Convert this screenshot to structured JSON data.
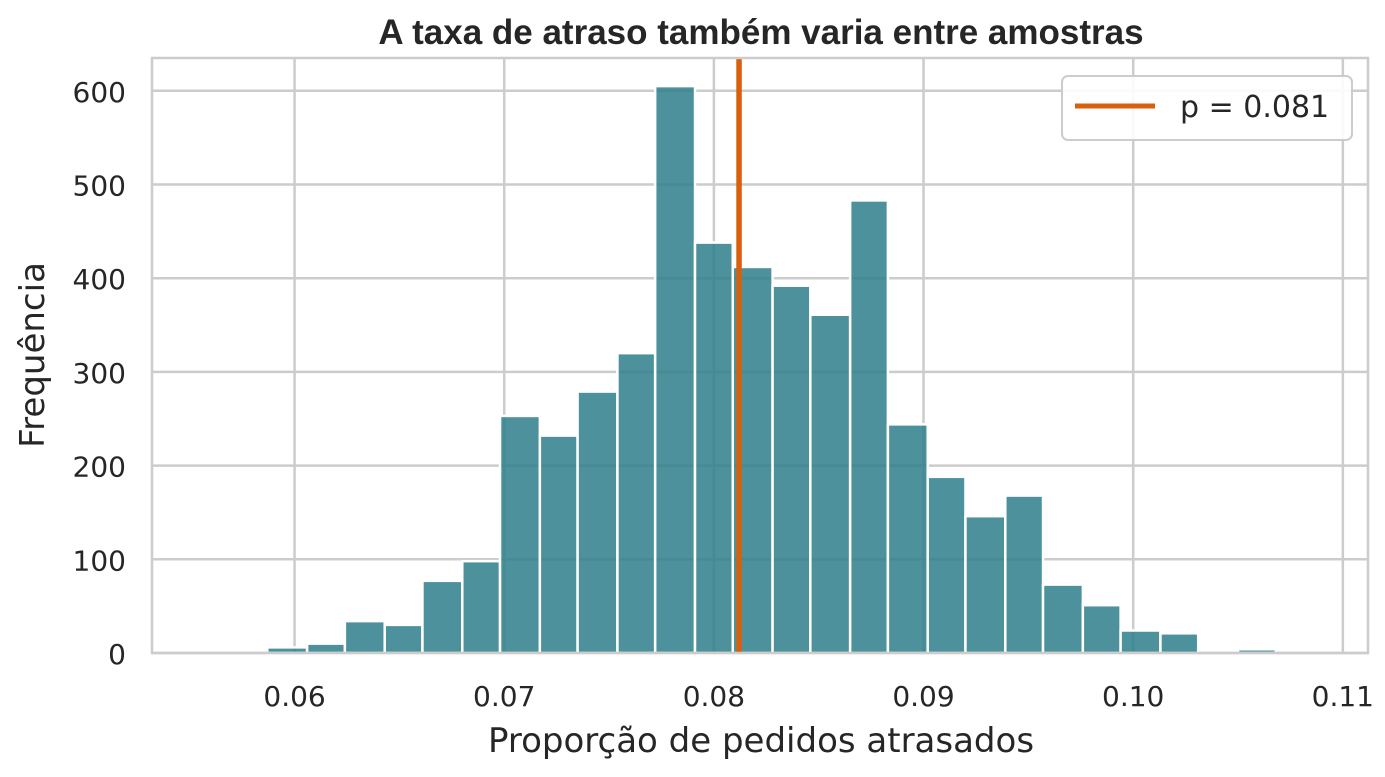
{
  "chart_data": {
    "type": "bar",
    "subtype": "histogram",
    "title": "A taxa de atraso também varia entre amostras",
    "xlabel": "Proporção de pedidos atrasados",
    "ylabel": "Frequência",
    "xlim": [
      0.0532,
      0.1112
    ],
    "ylim": [
      0,
      635
    ],
    "xticks": [
      0.06,
      0.07,
      0.08,
      0.09,
      0.1,
      0.11
    ],
    "xtick_labels": [
      "0.06",
      "0.07",
      "0.08",
      "0.09",
      "0.10",
      "0.11"
    ],
    "yticks": [
      0,
      100,
      200,
      300,
      400,
      500,
      600
    ],
    "ytick_labels": [
      "0",
      "100",
      "200",
      "300",
      "400",
      "500",
      "600"
    ],
    "grid": true,
    "legend_position": "top-right",
    "bar_color": "#2f7f8a",
    "bins": [
      {
        "start": 0.055,
        "end": 0.0569,
        "count": 0
      },
      {
        "start": 0.0569,
        "end": 0.0587,
        "count": 0
      },
      {
        "start": 0.0587,
        "end": 0.0606,
        "count": 6
      },
      {
        "start": 0.0606,
        "end": 0.0624,
        "count": 10
      },
      {
        "start": 0.0624,
        "end": 0.0643,
        "count": 34
      },
      {
        "start": 0.0643,
        "end": 0.0661,
        "count": 30
      },
      {
        "start": 0.0661,
        "end": 0.068,
        "count": 77
      },
      {
        "start": 0.068,
        "end": 0.0698,
        "count": 98
      },
      {
        "start": 0.0698,
        "end": 0.0717,
        "count": 253
      },
      {
        "start": 0.0717,
        "end": 0.0735,
        "count": 232
      },
      {
        "start": 0.0735,
        "end": 0.0754,
        "count": 279
      },
      {
        "start": 0.0754,
        "end": 0.0772,
        "count": 320
      },
      {
        "start": 0.0772,
        "end": 0.0791,
        "count": 605
      },
      {
        "start": 0.0791,
        "end": 0.0809,
        "count": 438
      },
      {
        "start": 0.0809,
        "end": 0.0828,
        "count": 412
      },
      {
        "start": 0.0828,
        "end": 0.0846,
        "count": 392
      },
      {
        "start": 0.0846,
        "end": 0.0865,
        "count": 361
      },
      {
        "start": 0.0865,
        "end": 0.0883,
        "count": 483
      },
      {
        "start": 0.0883,
        "end": 0.0902,
        "count": 244
      },
      {
        "start": 0.0902,
        "end": 0.092,
        "count": 188
      },
      {
        "start": 0.092,
        "end": 0.0939,
        "count": 146
      },
      {
        "start": 0.0939,
        "end": 0.0957,
        "count": 168
      },
      {
        "start": 0.0957,
        "end": 0.0976,
        "count": 73
      },
      {
        "start": 0.0976,
        "end": 0.0994,
        "count": 51
      },
      {
        "start": 0.0994,
        "end": 0.1013,
        "count": 24
      },
      {
        "start": 0.1013,
        "end": 0.1031,
        "count": 21
      },
      {
        "start": 0.1031,
        "end": 0.105,
        "count": 0
      },
      {
        "start": 0.105,
        "end": 0.1068,
        "count": 4
      },
      {
        "start": 0.1068,
        "end": 0.1087,
        "count": 0
      },
      {
        "start": 0.1087,
        "end": 0.1105,
        "count": 0
      }
    ],
    "reference_line": {
      "x": 0.0812,
      "label": "p = 0.081",
      "color": "#d95f0e"
    }
  }
}
